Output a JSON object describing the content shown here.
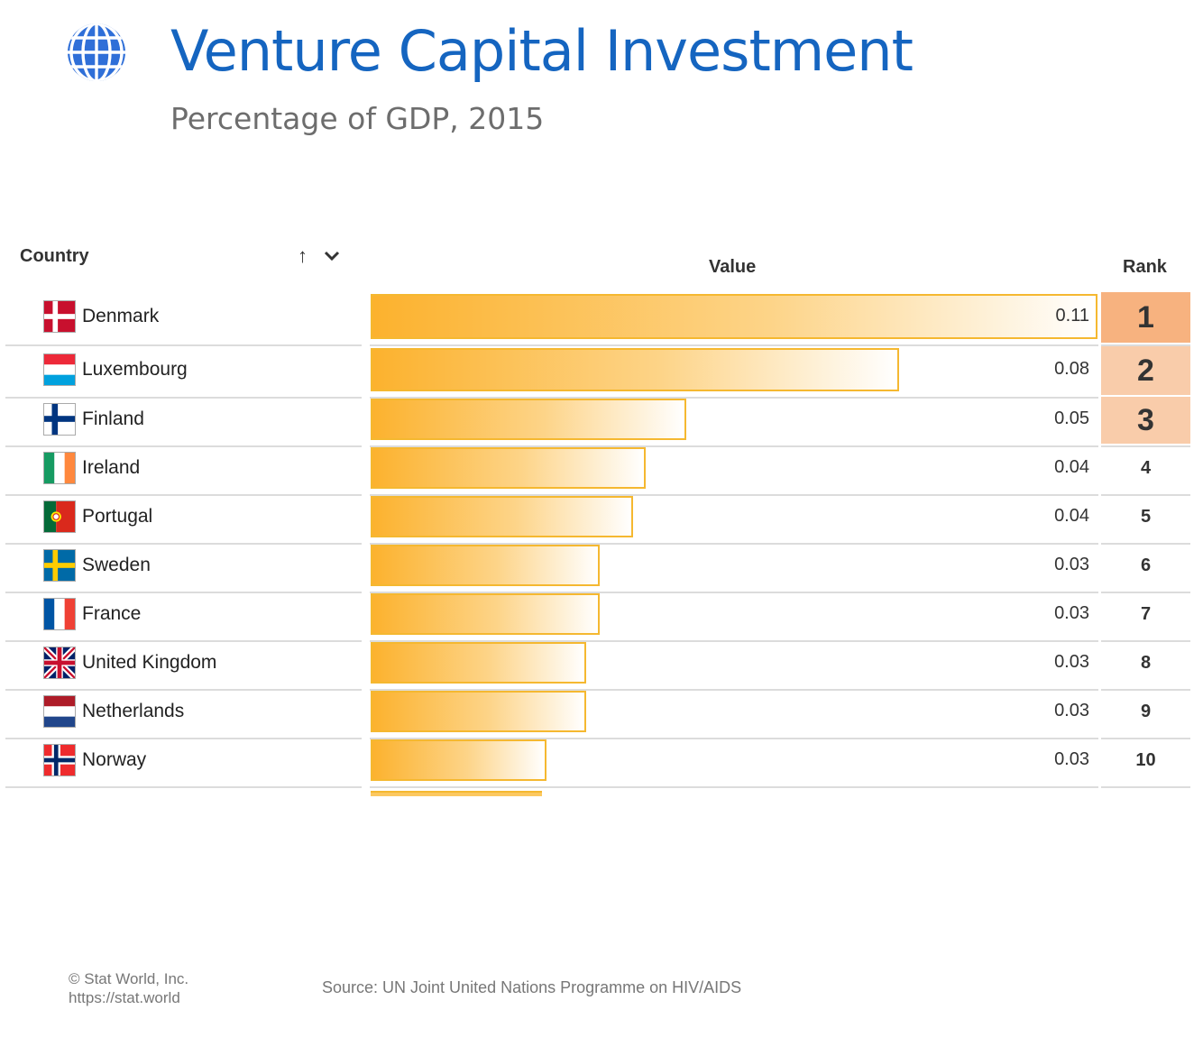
{
  "header": {
    "title": "Venture Capital Investment",
    "subtitle": "Percentage of GDP, 2015",
    "icon": "globe-icon"
  },
  "table": {
    "col_country": "Country",
    "col_value": "Value",
    "col_rank": "Rank",
    "sort_icons": [
      "sort-ascending-icon",
      "chevron-down-icon"
    ]
  },
  "chart_data": {
    "type": "bar",
    "title": "Venture Capital Investment",
    "subtitle": "Percentage of GDP, 2015",
    "categories": [
      "Denmark",
      "Luxembourg",
      "Finland",
      "Ireland",
      "Portugal",
      "Sweden",
      "France",
      "United Kingdom",
      "Netherlands",
      "Norway"
    ],
    "values": [
      0.11,
      0.08,
      0.05,
      0.04,
      0.04,
      0.03,
      0.03,
      0.03,
      0.03,
      0.03
    ],
    "value_labels": [
      "0.11",
      "0.08",
      "0.05",
      "0.04",
      "0.04",
      "0.03",
      "0.03",
      "0.03",
      "0.03",
      "0.03"
    ],
    "ranks": [
      "1",
      "2",
      "3",
      "4",
      "5",
      "6",
      "7",
      "8",
      "9",
      "10"
    ],
    "bar_fraction": [
      1.0,
      0.727,
      0.434,
      0.379,
      0.361,
      0.315,
      0.315,
      0.296,
      0.296,
      0.242
    ],
    "orientation": "horizontal",
    "colors": {
      "bar": "#fcb22e",
      "bar_border": "#f5b830",
      "rank1": "#f7b27f",
      "rank_top": "#f9ccaa"
    }
  },
  "footer": {
    "copyright": "© Stat World, Inc.",
    "url": "https://stat.world",
    "source": "Source: UN Joint United Nations Programme on HIV/AIDS"
  }
}
